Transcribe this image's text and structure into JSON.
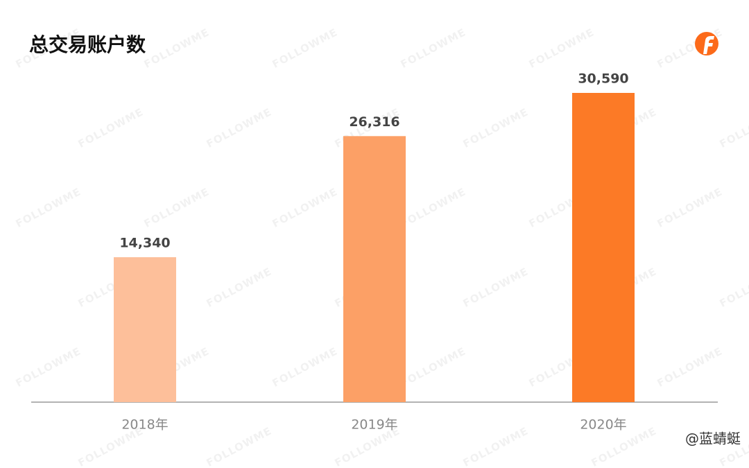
{
  "chart_data": {
    "type": "bar",
    "title": "总交易账户数",
    "categories": [
      "2018年",
      "2019年",
      "2020年"
    ],
    "values": [
      14340,
      26316,
      30590
    ],
    "value_labels": [
      "14,340",
      "26,316",
      "30,590"
    ],
    "colors": [
      "#fdbf9a",
      "#fca066",
      "#fc7a26"
    ],
    "watermark": "FOLLOWME",
    "credit": "@蓝蜻蜓"
  }
}
